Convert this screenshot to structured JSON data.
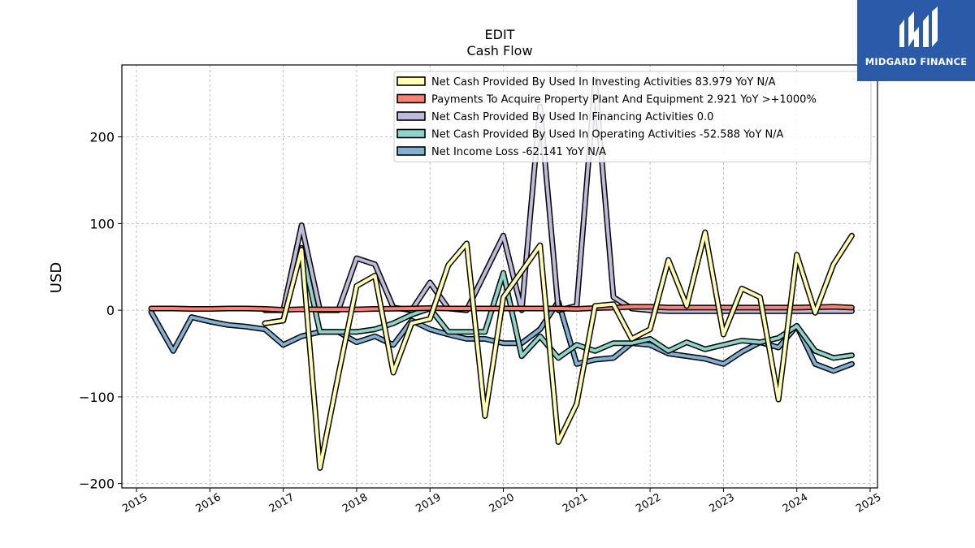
{
  "brand": {
    "name": "MIDGARD FINANCE",
    "bg_color": "#2a5aa8"
  },
  "chart_data": {
    "type": "line",
    "title": "EDIT",
    "subtitle": "Cash Flow",
    "xlabel": "",
    "ylabel": "USD",
    "xlim": [
      2014.8,
      2025.1
    ],
    "ylim": [
      -205,
      283
    ],
    "x_ticks": [
      2015,
      2016,
      2017,
      2018,
      2019,
      2020,
      2021,
      2022,
      2023,
      2024,
      2025
    ],
    "y_ticks": [
      -200,
      -100,
      0,
      100,
      200
    ],
    "y_tick_labels": [
      "−200",
      "−100",
      "0",
      "100",
      "200"
    ],
    "grid": true,
    "legend_position": "top-right",
    "series": [
      {
        "name": "Net Cash Provided By Used In Investing Activities",
        "legend_label": "Net Cash Provided By Used In Investing Activities  83.979 YoY N/A",
        "color": "#ffffb3",
        "x": [
          2016.75,
          2017.0,
          2017.25,
          2017.5,
          2017.75,
          2018.0,
          2018.25,
          2018.5,
          2018.75,
          2019.0,
          2019.25,
          2019.5,
          2019.75,
          2020.0,
          2020.25,
          2020.5,
          2020.75,
          2021.0,
          2021.25,
          2021.5,
          2021.75,
          2022.0,
          2022.25,
          2022.5,
          2022.75,
          2023.0,
          2023.25,
          2023.5,
          2023.75,
          2024.0,
          2024.25,
          2024.5,
          2024.75
        ],
        "values": [
          -15,
          -12,
          70,
          -182,
          -75,
          28,
          40,
          -72,
          -15,
          -10,
          52,
          77,
          -122,
          15,
          45,
          75,
          -152,
          -108,
          5,
          7,
          -33,
          -22,
          58,
          5,
          90,
          -28,
          25,
          15,
          -103,
          64,
          -3,
          53,
          86
        ]
      },
      {
        "name": "Payments To Acquire Property Plant And Equipment",
        "legend_label": "Payments To Acquire Property Plant And Equipment  2.921 YoY >+1000%",
        "color": "#fb8072",
        "x": [
          2015.2,
          2015.5,
          2015.75,
          2016.0,
          2016.25,
          2016.5,
          2016.75,
          2017.0,
          2017.25,
          2017.5,
          2017.75,
          2018.0,
          2018.25,
          2018.5,
          2018.75,
          2019.0,
          2019.25,
          2019.5,
          2019.75,
          2020.0,
          2020.25,
          2020.5,
          2020.75,
          2021.0,
          2021.25,
          2021.5,
          2021.75,
          2022.0,
          2022.25,
          2022.5,
          2022.75,
          2023.0,
          2023.25,
          2023.5,
          2023.75,
          2024.0,
          2024.25,
          2024.5,
          2024.75
        ],
        "values": [
          2,
          2,
          1.5,
          1.5,
          2,
          2,
          1.5,
          0.5,
          1.2,
          1,
          1,
          1,
          1.5,
          1.8,
          2,
          2.5,
          2,
          2,
          2,
          2,
          2,
          2,
          2,
          1.5,
          2.5,
          3,
          4,
          4,
          3,
          3,
          3,
          3,
          3,
          3,
          3,
          3,
          3.5,
          4,
          3
        ]
      },
      {
        "name": "Net Cash Provided By Used In Financing Activities",
        "legend_label": "Net Cash Provided By Used In Financing Activities  0.0",
        "color": "#bebada",
        "x": [
          2016.75,
          2017.0,
          2017.25,
          2017.5,
          2017.75,
          2018.0,
          2018.25,
          2018.5,
          2018.75,
          2019.0,
          2019.25,
          2019.5,
          2019.75,
          2020.0,
          2020.25,
          2020.5,
          2020.75,
          2021.0,
          2021.25,
          2021.5,
          2021.75,
          2022.0,
          2022.25,
          2022.5,
          2022.75,
          2023.0,
          2023.25,
          2023.5,
          2023.75,
          2024.0,
          2024.25,
          2024.5,
          2024.75
        ],
        "values": [
          0,
          0,
          98,
          0,
          0,
          60,
          53,
          3,
          0,
          32,
          2,
          0,
          43,
          86,
          0,
          235,
          0,
          5,
          265,
          15,
          2,
          0,
          -1,
          -1,
          -1,
          -1,
          -1,
          -1,
          -1,
          -1,
          -1,
          -1,
          -1
        ]
      },
      {
        "name": "Net Cash Provided By Used In Operating Activities",
        "legend_label": "Net Cash Provided By Used In Operating Activities  -52.588 YoY N/A",
        "color": "#8dd3c7",
        "x": [
          2016.75,
          2017.0,
          2017.25,
          2017.5,
          2017.75,
          2018.0,
          2018.25,
          2018.5,
          2018.75,
          2019.0,
          2019.25,
          2019.5,
          2019.75,
          2020.0,
          2020.25,
          2020.5,
          2020.75,
          2021.0,
          2021.25,
          2021.5,
          2021.75,
          2022.0,
          2022.25,
          2022.5,
          2022.75,
          2023.0,
          2023.25,
          2023.5,
          2023.75,
          2024.0,
          2024.25,
          2024.5,
          2024.75
        ],
        "values": [
          -15,
          -12,
          72,
          -25,
          -25,
          -25,
          -22,
          -15,
          -5,
          2,
          -25,
          -25,
          -25,
          43,
          -53,
          -30,
          -55,
          -40,
          -47,
          -38,
          -38,
          -33,
          -47,
          -37,
          -45,
          -40,
          -35,
          -37,
          -32,
          -18,
          -47,
          -55,
          -52
        ]
      },
      {
        "name": "Net Income Loss",
        "legend_label": "Net Income Loss  -62.141 YoY N/A",
        "color": "#80b1d3",
        "x": [
          2015.2,
          2015.5,
          2015.75,
          2016.0,
          2016.25,
          2016.5,
          2016.75,
          2017.0,
          2017.25,
          2017.5,
          2017.75,
          2018.0,
          2018.25,
          2018.5,
          2018.75,
          2019.0,
          2019.25,
          2019.5,
          2019.75,
          2020.0,
          2020.25,
          2020.5,
          2020.75,
          2021.0,
          2021.25,
          2021.5,
          2021.75,
          2022.0,
          2022.25,
          2022.5,
          2022.75,
          2023.0,
          2023.25,
          2023.5,
          2023.75,
          2024.0,
          2024.25,
          2024.5,
          2024.75
        ],
        "values": [
          -2,
          -47,
          -8,
          -13,
          -17,
          -19,
          -22,
          -40,
          -30,
          -25,
          -25,
          -37,
          -30,
          -40,
          -12,
          -22,
          -28,
          -33,
          -33,
          -38,
          -38,
          -22,
          10,
          -62,
          -57,
          -55,
          -38,
          -40,
          -50,
          -53,
          -56,
          -62,
          -48,
          -37,
          -43,
          -18,
          -62,
          -70,
          -62
        ]
      }
    ]
  }
}
